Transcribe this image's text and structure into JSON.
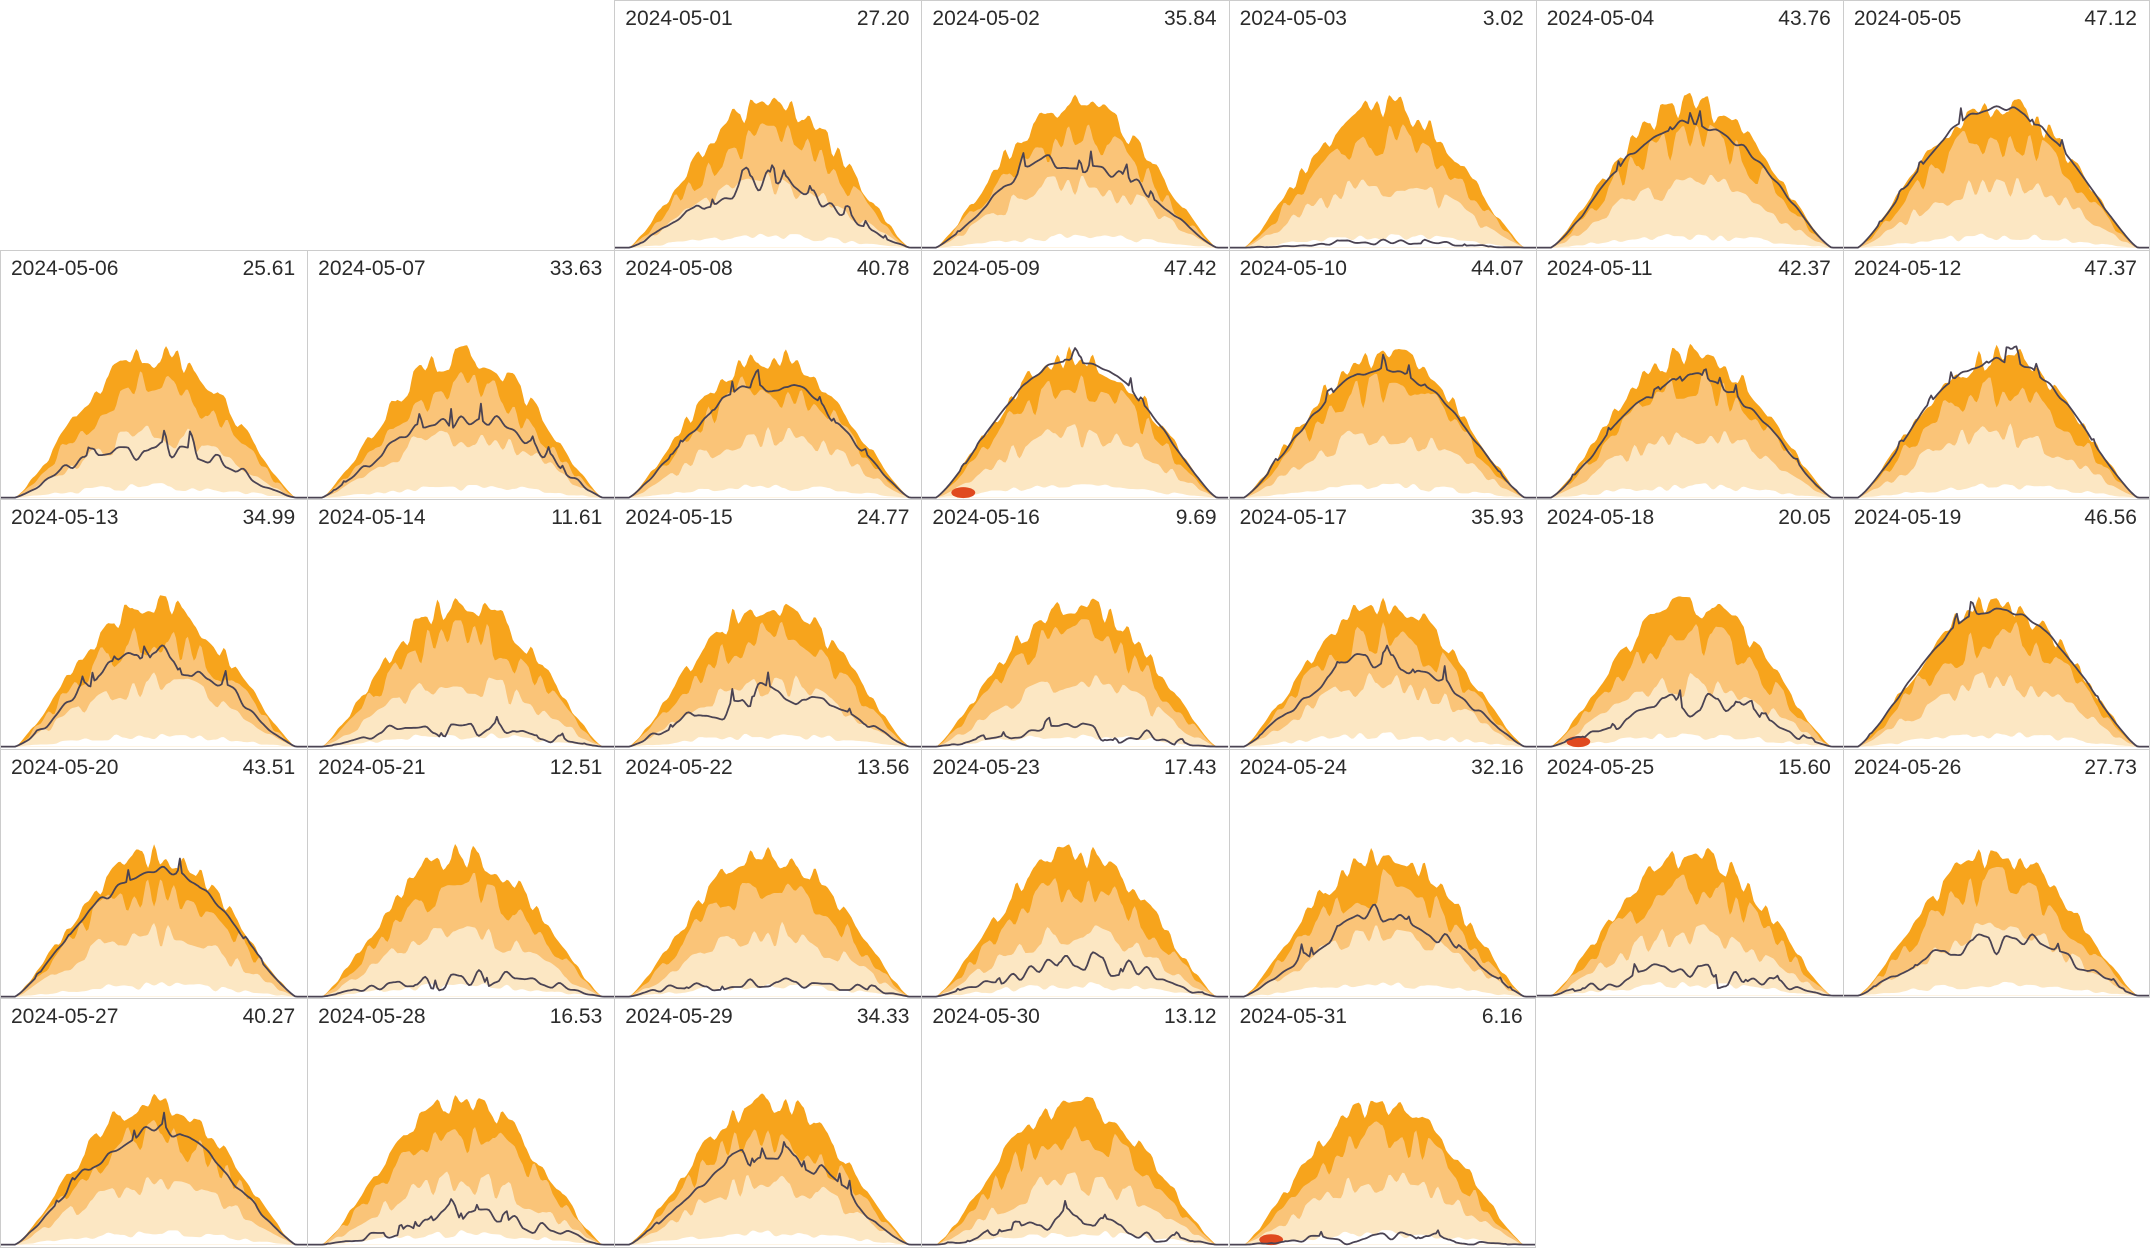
{
  "page": {
    "title": "Daily solar production small-multiples calendar",
    "background": "#ffffff",
    "border_color": "#cccccc",
    "header_text_color": "#2b2b2b"
  },
  "chart_data": {
    "type": "area",
    "layout": "calendar-small-multiples",
    "title": "",
    "xlabel": "",
    "ylabel": "",
    "grid": {
      "columns": 7,
      "rows": 5,
      "first_day_column": 3
    },
    "x_axis": {
      "description": "time of day (unlabeled, sunrise to sunset)"
    },
    "y_axis": {
      "description": "power (unlabeled); envelope bands behind actual line"
    },
    "legend": "none shown",
    "bands": [
      {
        "name": "outer-envelope",
        "color": "#F7A41C"
      },
      {
        "name": "mid-band",
        "color": "#FAC478"
      },
      {
        "name": "inner-band",
        "color": "#FCE7C3"
      },
      {
        "name": "base-band",
        "color": "#FFFFFF"
      }
    ],
    "actual_line": {
      "color": "#4A4353",
      "width": 1.8
    },
    "alert_marker_color": "#E0491F",
    "days": [
      {
        "date": "2024-05-01",
        "value": "27.20",
        "marker": false
      },
      {
        "date": "2024-05-02",
        "value": "35.84",
        "marker": false
      },
      {
        "date": "2024-05-03",
        "value": "3.02",
        "marker": false
      },
      {
        "date": "2024-05-04",
        "value": "43.76",
        "marker": false
      },
      {
        "date": "2024-05-05",
        "value": "47.12",
        "marker": false
      },
      {
        "date": "2024-05-06",
        "value": "25.61",
        "marker": false
      },
      {
        "date": "2024-05-07",
        "value": "33.63",
        "marker": false
      },
      {
        "date": "2024-05-08",
        "value": "40.78",
        "marker": false
      },
      {
        "date": "2024-05-09",
        "value": "47.42",
        "marker": true
      },
      {
        "date": "2024-05-10",
        "value": "44.07",
        "marker": false
      },
      {
        "date": "2024-05-11",
        "value": "42.37",
        "marker": false
      },
      {
        "date": "2024-05-12",
        "value": "47.37",
        "marker": false
      },
      {
        "date": "2024-05-13",
        "value": "34.99",
        "marker": false
      },
      {
        "date": "2024-05-14",
        "value": "11.61",
        "marker": false
      },
      {
        "date": "2024-05-15",
        "value": "24.77",
        "marker": false
      },
      {
        "date": "2024-05-16",
        "value": "9.69",
        "marker": false
      },
      {
        "date": "2024-05-17",
        "value": "35.93",
        "marker": false
      },
      {
        "date": "2024-05-18",
        "value": "20.05",
        "marker": true
      },
      {
        "date": "2024-05-19",
        "value": "46.56",
        "marker": false
      },
      {
        "date": "2024-05-20",
        "value": "43.51",
        "marker": false
      },
      {
        "date": "2024-05-21",
        "value": "12.51",
        "marker": false
      },
      {
        "date": "2024-05-22",
        "value": "13.56",
        "marker": false
      },
      {
        "date": "2024-05-23",
        "value": "17.43",
        "marker": false
      },
      {
        "date": "2024-05-24",
        "value": "32.16",
        "marker": false
      },
      {
        "date": "2024-05-25",
        "value": "15.60",
        "marker": false
      },
      {
        "date": "2024-05-26",
        "value": "27.73",
        "marker": false
      },
      {
        "date": "2024-05-27",
        "value": "40.27",
        "marker": false
      },
      {
        "date": "2024-05-28",
        "value": "16.53",
        "marker": false
      },
      {
        "date": "2024-05-29",
        "value": "34.33",
        "marker": false
      },
      {
        "date": "2024-05-30",
        "value": "13.12",
        "marker": false
      },
      {
        "date": "2024-05-31",
        "value": "6.16",
        "marker": true
      }
    ]
  }
}
